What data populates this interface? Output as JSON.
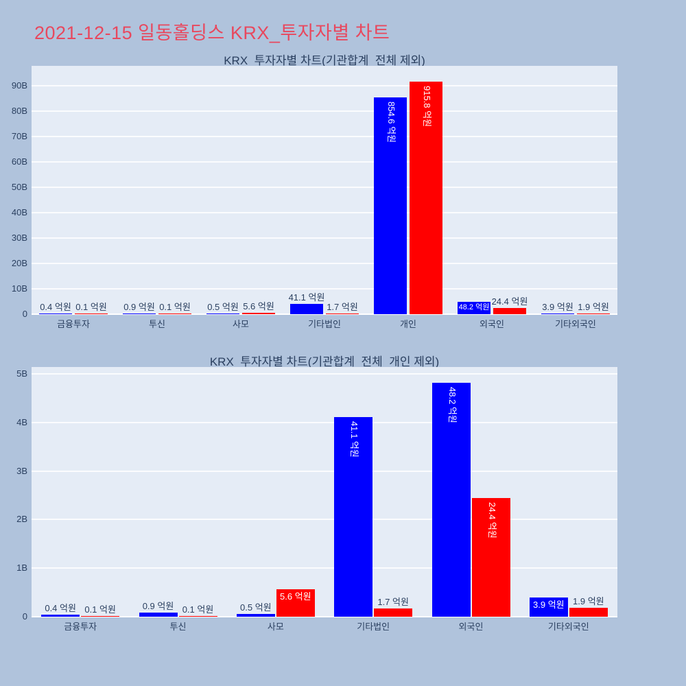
{
  "page": {
    "background": "#b0c3dc",
    "title": "2021-12-15 일동홀딩스 KRX_투자자별 차트",
    "title_color": "#e8485e"
  },
  "colors": {
    "plot_bg": "#e5ecf6",
    "grid": "#ffffff",
    "text": "#2a3f5f",
    "bar_blue": "#0000ff",
    "bar_red": "#ff0000"
  },
  "chart_data": [
    {
      "type": "bar",
      "title": "KRX_투자자별 차트(기관합계_전체 제외)",
      "unit": "억원",
      "grid": true,
      "legend": false,
      "categories": [
        "금융투자",
        "투신",
        "사모",
        "기타법인",
        "개인",
        "외국인",
        "기타외국인"
      ],
      "series": [
        {
          "name": "blue",
          "color": "#0000ff",
          "values": [
            0.4,
            0.9,
            0.5,
            41.1,
            854.6,
            48.2,
            3.9
          ],
          "labels": [
            "0.4 억원",
            "0.9 억원",
            "0.5 억원",
            "41.1 억원",
            "854.6 억원",
            "48.2 억원",
            "3.9 억원"
          ],
          "label_pos": [
            "out",
            "out",
            "out",
            "out",
            "in-v",
            "in-h",
            "out"
          ]
        },
        {
          "name": "red",
          "color": "#ff0000",
          "values": [
            0.1,
            0.1,
            5.6,
            1.7,
            915.8,
            24.4,
            1.9
          ],
          "labels": [
            "0.1 억원",
            "0.1 억원",
            "5.6 억원",
            "1.7 억원",
            "915.8 억원",
            "24.4 억원",
            "1.9 억원"
          ],
          "label_pos": [
            "out",
            "out",
            "out",
            "out",
            "in-v",
            "out",
            "out"
          ]
        }
      ],
      "yaxis": {
        "ticks": [
          "0",
          "10B",
          "20B",
          "30B",
          "40B",
          "50B",
          "60B",
          "70B",
          "80B",
          "90B"
        ],
        "tick_step_B": 10,
        "ylim_B": [
          0,
          97.8
        ]
      }
    },
    {
      "type": "bar",
      "title": "KRX_투자자별 차트(기관합계_전체_개인 제외)",
      "unit": "억원",
      "grid": true,
      "legend": false,
      "categories": [
        "금융투자",
        "투신",
        "사모",
        "기타법인",
        "외국인",
        "기타외국인"
      ],
      "series": [
        {
          "name": "blue",
          "color": "#0000ff",
          "values": [
            0.4,
            0.9,
            0.5,
            41.1,
            48.2,
            3.9
          ],
          "labels": [
            "0.4 억원",
            "0.9 억원",
            "0.5 억원",
            "41.1 억원",
            "48.2 억원",
            "3.9 억원"
          ],
          "label_pos": [
            "out",
            "out",
            "out",
            "in-v",
            "in-v",
            "in-h"
          ]
        },
        {
          "name": "red",
          "color": "#ff0000",
          "values": [
            0.1,
            0.1,
            5.6,
            1.7,
            24.4,
            1.9
          ],
          "labels": [
            "0.1 억원",
            "0.1 억원",
            "5.6 억원",
            "1.7 억원",
            "24.4 억원",
            "1.9 억원"
          ],
          "label_pos": [
            "out",
            "out",
            "in-h",
            "out",
            "in-v",
            "out"
          ]
        }
      ],
      "yaxis": {
        "ticks": [
          "0",
          "1B",
          "2B",
          "3B",
          "4B",
          "5B"
        ],
        "tick_step_B": 1,
        "ylim_B": [
          0,
          5.14
        ]
      }
    }
  ]
}
